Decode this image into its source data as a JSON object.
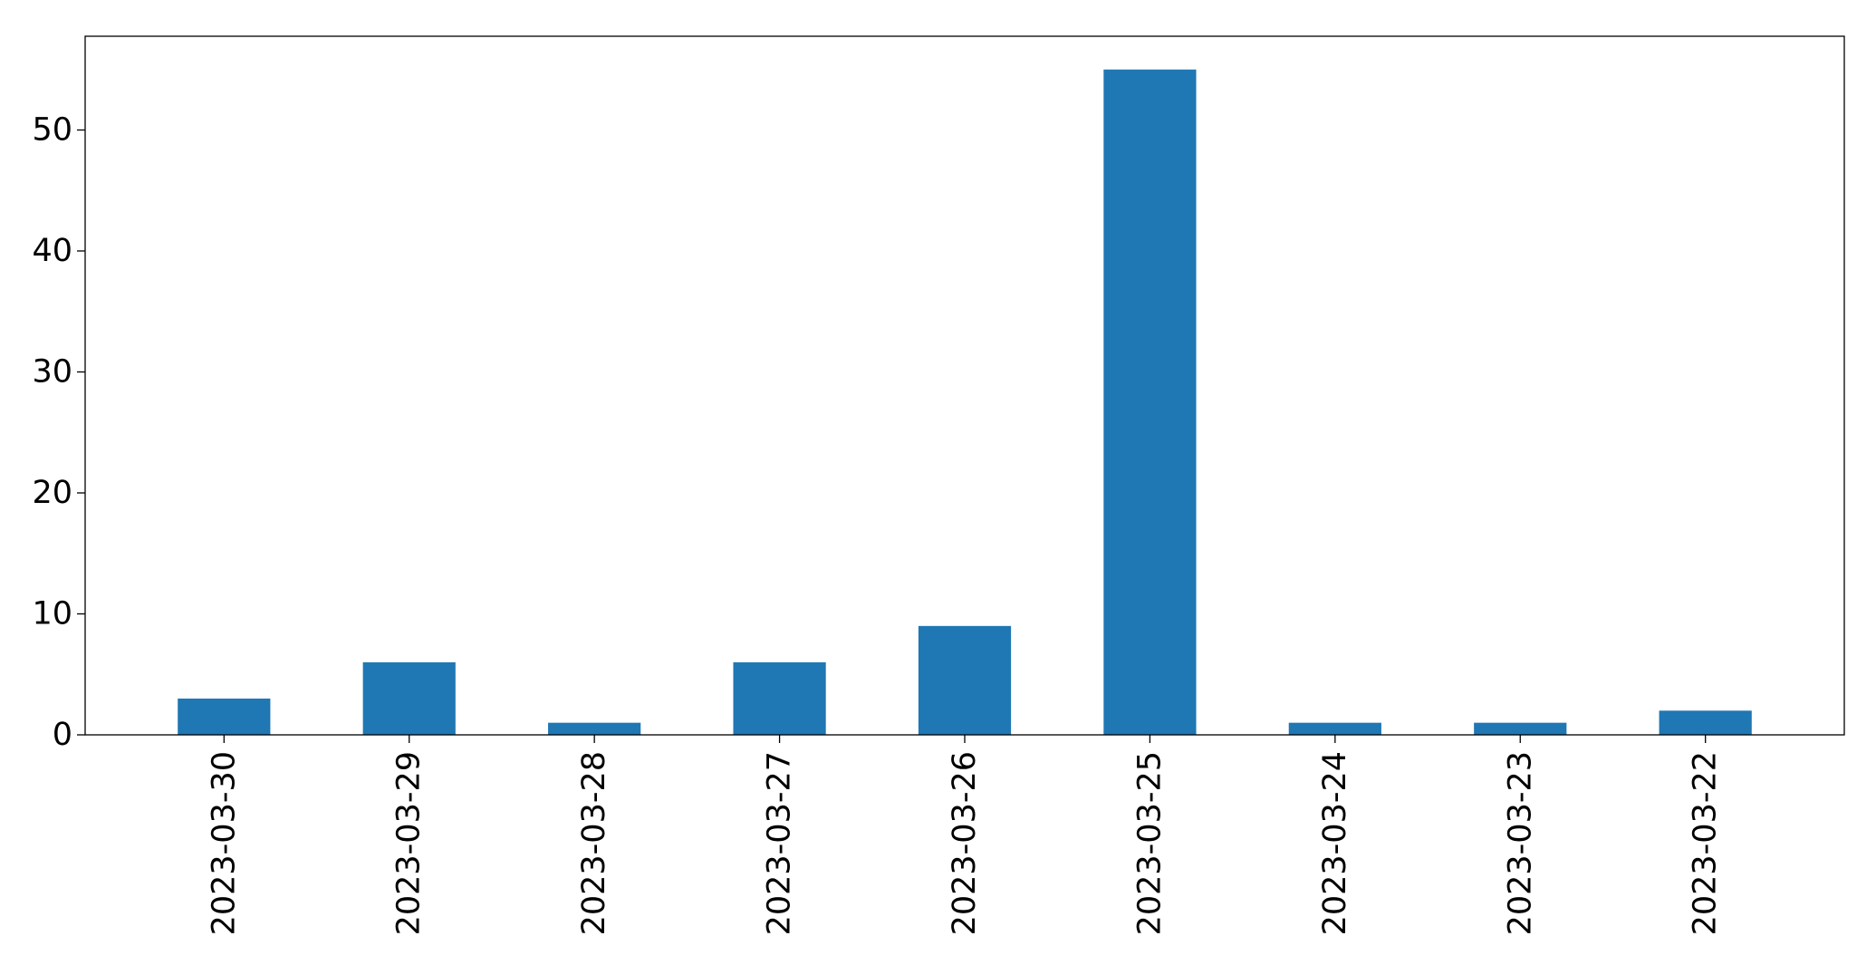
{
  "chart_data": {
    "type": "bar",
    "title": "",
    "xlabel": "",
    "ylabel": "",
    "categories": [
      "2023-03-30",
      "2023-03-29",
      "2023-03-28",
      "2023-03-27",
      "2023-03-26",
      "2023-03-25",
      "2023-03-24",
      "2023-03-23",
      "2023-03-22"
    ],
    "values": [
      3,
      6,
      1,
      6,
      9,
      55,
      1,
      1,
      2
    ],
    "ylim": [
      0,
      57.75
    ],
    "yticks": [
      0,
      10,
      20,
      30,
      40,
      50
    ],
    "grid": false,
    "legend": "none",
    "bar_color": "#1f77b4",
    "axis_color": "#000000"
  }
}
